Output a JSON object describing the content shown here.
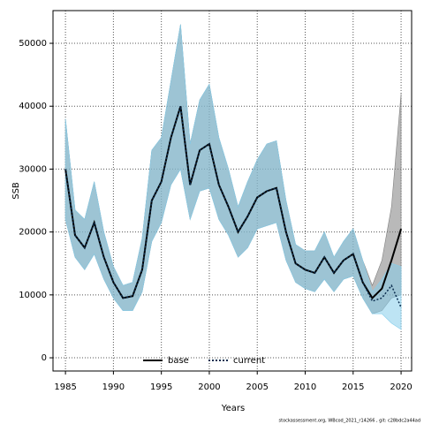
{
  "chart_data": {
    "type": "line",
    "x_label": "Years",
    "y_label": "SSB",
    "footnote": "stockassessment.org, WBcod_2021_r14266 , git: c28bdc2a44ad",
    "x": [
      1985,
      1986,
      1987,
      1988,
      1989,
      1990,
      1991,
      1992,
      1993,
      1994,
      1995,
      1996,
      1997,
      1998,
      1999,
      2000,
      2001,
      2002,
      2003,
      2004,
      2005,
      2006,
      2007,
      2008,
      2009,
      2010,
      2011,
      2012,
      2013,
      2014,
      2015,
      2016,
      2017,
      2018,
      2019,
      2020
    ],
    "series": [
      {
        "name": "base",
        "color": "#000000",
        "band_color": "#808080",
        "values": [
          30000,
          19500,
          17500,
          21500,
          16000,
          12000,
          9500,
          9800,
          14000,
          25000,
          28000,
          35000,
          40000,
          27500,
          33000,
          34000,
          27500,
          24000,
          20000,
          22500,
          25500,
          26500,
          27000,
          20000,
          15000,
          14000,
          13500,
          16000,
          13500,
          15500,
          16500,
          12000,
          9500,
          11000,
          15500,
          20500
        ],
        "upper": [
          38000,
          23500,
          22000,
          28000,
          20000,
          14500,
          11500,
          12000,
          19000,
          33000,
          35000,
          44000,
          53000,
          34000,
          41000,
          43500,
          35000,
          30000,
          24000,
          28000,
          31500,
          34000,
          34500,
          25000,
          18000,
          17000,
          17000,
          20000,
          16000,
          18500,
          20500,
          15500,
          11500,
          15500,
          24000,
          42000
        ],
        "lower": [
          22000,
          16000,
          14000,
          16500,
          12500,
          9500,
          7500,
          7500,
          10500,
          18500,
          21500,
          27500,
          30000,
          22000,
          26500,
          27000,
          22000,
          19500,
          16000,
          17500,
          20500,
          21000,
          21500,
          15500,
          12000,
          11000,
          10500,
          12500,
          10500,
          12500,
          13000,
          9500,
          7000,
          7500,
          9500,
          10000
        ]
      },
      {
        "name": "current",
        "color": "#0b2d4f",
        "band_color": "#87ceeb",
        "values": [
          30000,
          19500,
          17500,
          21500,
          16000,
          12000,
          9500,
          9800,
          14000,
          25000,
          28000,
          35000,
          40000,
          27500,
          33000,
          34000,
          27500,
          24000,
          20000,
          22500,
          25500,
          26500,
          27000,
          20000,
          15000,
          14000,
          13500,
          16000,
          13500,
          15500,
          16500,
          12000,
          9000,
          9500,
          11500,
          8000
        ],
        "upper": [
          38000,
          23500,
          22000,
          28000,
          20000,
          14500,
          11500,
          12000,
          19000,
          33000,
          35000,
          44000,
          53000,
          34000,
          41000,
          43500,
          35000,
          30000,
          24000,
          28000,
          31500,
          34000,
          34500,
          25000,
          18000,
          17000,
          17000,
          20000,
          16000,
          18500,
          20500,
          15500,
          10500,
          12500,
          15000,
          14500
        ],
        "lower": [
          22000,
          16000,
          14000,
          16500,
          12500,
          9500,
          7500,
          7500,
          10500,
          18500,
          21500,
          27500,
          30000,
          22000,
          26500,
          27000,
          22000,
          19500,
          16000,
          17500,
          20500,
          21000,
          21500,
          15500,
          12000,
          11000,
          10500,
          12500,
          10500,
          12500,
          13000,
          9500,
          7000,
          7000,
          5500,
          4500
        ]
      }
    ],
    "xlim": [
      1983.7,
      2021.1
    ],
    "xticks": [
      1985,
      1990,
      1995,
      2000,
      2005,
      2010,
      2015,
      2020
    ],
    "ylim": [
      -2100,
      55200
    ],
    "yticks": [
      0,
      10000,
      20000,
      30000,
      40000,
      50000
    ],
    "grid": true,
    "legend": "bottom"
  }
}
